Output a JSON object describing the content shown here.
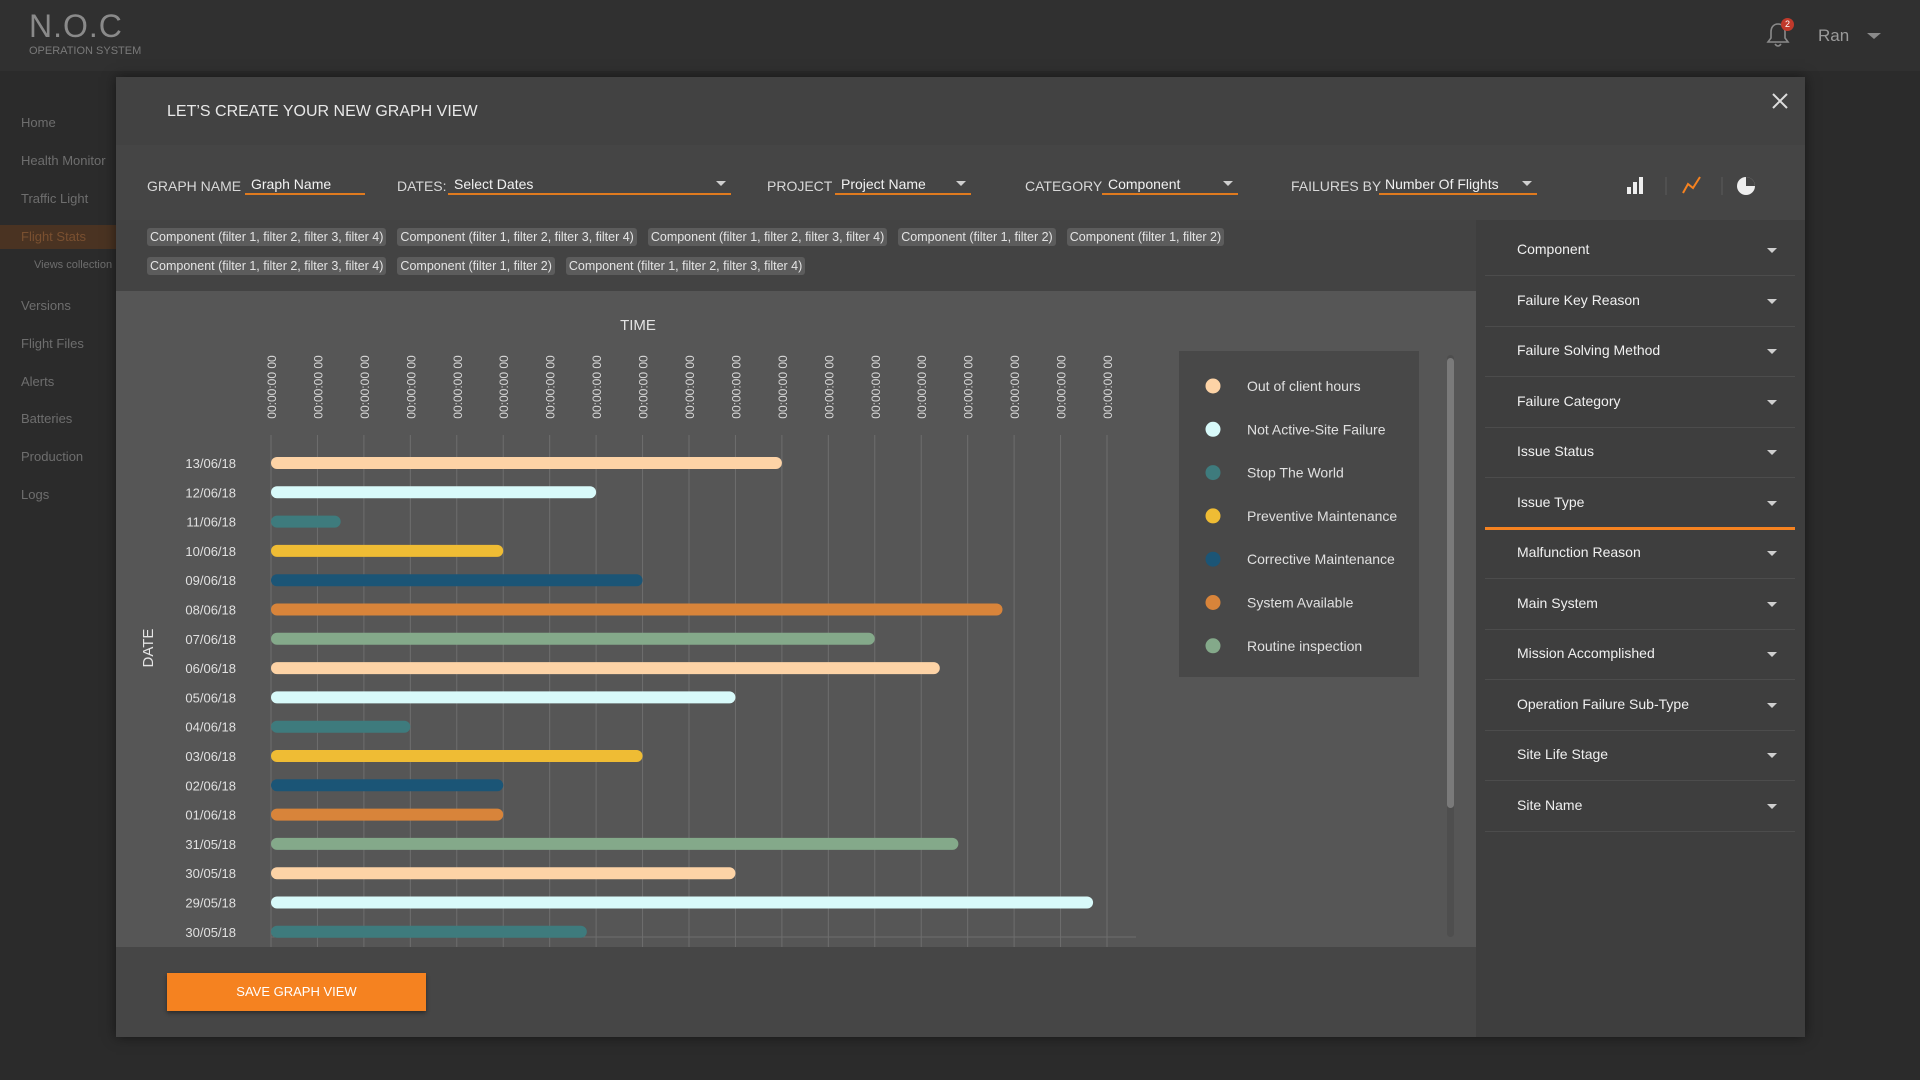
{
  "header": {
    "logo": "N.O.C",
    "subtitle": "OPERATION SYSTEM",
    "notifications": "2",
    "user": "Ran"
  },
  "sidebar": {
    "items": [
      {
        "label": "Home"
      },
      {
        "label": "Health Monitor"
      },
      {
        "label": "Traffic Light"
      },
      {
        "label": "Flight Stats",
        "active": true
      },
      {
        "label": "Views collection",
        "sub": true
      },
      {
        "label": "Versions"
      },
      {
        "label": "Flight Files"
      },
      {
        "label": "Alerts"
      },
      {
        "label": "Batteries"
      },
      {
        "label": "Production"
      },
      {
        "label": "Logs"
      }
    ]
  },
  "modal": {
    "title": "LET’S CREATE YOUR NEW GRAPH VIEW",
    "filters": [
      {
        "label": "GRAPH NAME",
        "value": "Graph Name"
      },
      {
        "label": "DATES:",
        "value": "Select Dates"
      },
      {
        "label": "PROJECT",
        "value": "Project Name"
      },
      {
        "label": "CATEGORY",
        "value": "Component"
      },
      {
        "label": "FAILURES BY",
        "value": "Number Of Flights"
      }
    ],
    "tags": [
      [
        "Component (filter 1, filter 2, filter 3, filter 4)",
        "Component (filter 1, filter 2, filter 3, filter 4)",
        "Component (filter 1, filter 2, filter 3, filter 4)",
        "Component (filter 1, filter 2)",
        "Component (filter 1, filter 2)"
      ],
      [
        "Component (filter 1, filter 2, filter 3, filter 4)",
        "Component (filter 1, filter 2)",
        "Component (filter 1, filter 2, filter 3, filter 4)"
      ]
    ],
    "side_panel": [
      {
        "label": "Component"
      },
      {
        "label": "Failure Key Reason"
      },
      {
        "label": "Failure Solving Method"
      },
      {
        "label": "Failure Category"
      },
      {
        "label": "Issue Status"
      },
      {
        "label": "Issue Type",
        "active": true
      },
      {
        "label": "Malfunction Reason"
      },
      {
        "label": "Main System"
      },
      {
        "label": "Mission Accomplished"
      },
      {
        "label": "Operation Failure Sub-Type"
      },
      {
        "label": "Site Life Stage"
      },
      {
        "label": "Site Name"
      }
    ],
    "button": "SAVE GRAPH VIEW"
  },
  "chart_data": {
    "type": "bar",
    "orientation": "horizontal",
    "x_label": "TIME",
    "y_label": "DATE",
    "categories": [
      "13/06/18",
      "12/06/18",
      "11/06/18",
      "10/06/18",
      "09/06/18",
      "08/06/18",
      "07/06/18",
      "06/06/18",
      "05/06/18",
      "04/06/18",
      "03/06/18",
      "02/06/18",
      "01/06/18",
      "31/05/18",
      "30/05/18",
      "29/05/18",
      "30/05/18"
    ],
    "series": [
      {
        "name": "Out of client hours",
        "color": "#fdd3a6",
        "values": [
          11,
          null,
          null,
          null,
          null,
          null,
          null,
          14.4,
          null,
          null,
          null,
          null,
          null,
          null,
          10,
          null,
          null
        ]
      },
      {
        "name": "Not Active-Site Failure",
        "color": "#d8fafa",
        "values": [
          null,
          7,
          null,
          null,
          null,
          null,
          null,
          null,
          10,
          null,
          null,
          null,
          null,
          null,
          null,
          17.7,
          null
        ]
      },
      {
        "name": "Stop The World",
        "color": "#3e7b7d",
        "values": [
          null,
          null,
          1.5,
          null,
          null,
          null,
          null,
          null,
          null,
          3,
          null,
          null,
          null,
          null,
          null,
          null,
          6.8
        ]
      },
      {
        "name": "Preventive Maintenance",
        "color": "#efbc34",
        "values": [
          null,
          null,
          null,
          5,
          null,
          null,
          null,
          null,
          null,
          null,
          8,
          null,
          null,
          null,
          null,
          null,
          null
        ]
      },
      {
        "name": "Corrective Maintenance",
        "color": "#1b5576",
        "values": [
          null,
          null,
          null,
          null,
          8,
          null,
          null,
          null,
          null,
          null,
          null,
          5,
          null,
          null,
          null,
          null,
          null
        ]
      },
      {
        "name": "System Available",
        "color": "#d8843a",
        "values": [
          null,
          null,
          null,
          null,
          null,
          15.75,
          null,
          null,
          null,
          null,
          null,
          null,
          5,
          null,
          null,
          null,
          null
        ]
      },
      {
        "name": "Routine inspection",
        "color": "#84a98a",
        "values": [
          null,
          null,
          null,
          null,
          null,
          null,
          13,
          null,
          null,
          null,
          null,
          null,
          null,
          14.8,
          null,
          null,
          null
        ]
      }
    ],
    "xlim": [
      0,
      18
    ],
    "xticks": [
      {
        "value": 0,
        "label": "00:00:00 00"
      },
      {
        "value": 1,
        "label": "00:00:00 00"
      },
      {
        "value": 2,
        "label": "00:00:00 00"
      },
      {
        "value": 3,
        "label": "00:00:00 00"
      },
      {
        "value": 4,
        "label": "00:00:00 00"
      },
      {
        "value": 5,
        "label": "00:00:00 00"
      },
      {
        "value": 6,
        "label": "00:00:00 00"
      },
      {
        "value": 7,
        "label": "00:00:00 00"
      },
      {
        "value": 8,
        "label": "00:00:00 00"
      },
      {
        "value": 9,
        "label": "00:00:00 00"
      },
      {
        "value": 10,
        "label": "00:00:00 00"
      },
      {
        "value": 11,
        "label": "00:00:00 00"
      },
      {
        "value": 12,
        "label": "00:00:00 00"
      },
      {
        "value": 13,
        "label": "00:00:00 00"
      },
      {
        "value": 14,
        "label": "00:00:00 00"
      },
      {
        "value": 15,
        "label": "00:00:00 00"
      },
      {
        "value": 16,
        "label": "00:00:00 00"
      },
      {
        "value": 17,
        "label": "00:00:00 00"
      },
      {
        "value": 18,
        "label": "00:00:00 00"
      }
    ],
    "grid": true
  }
}
